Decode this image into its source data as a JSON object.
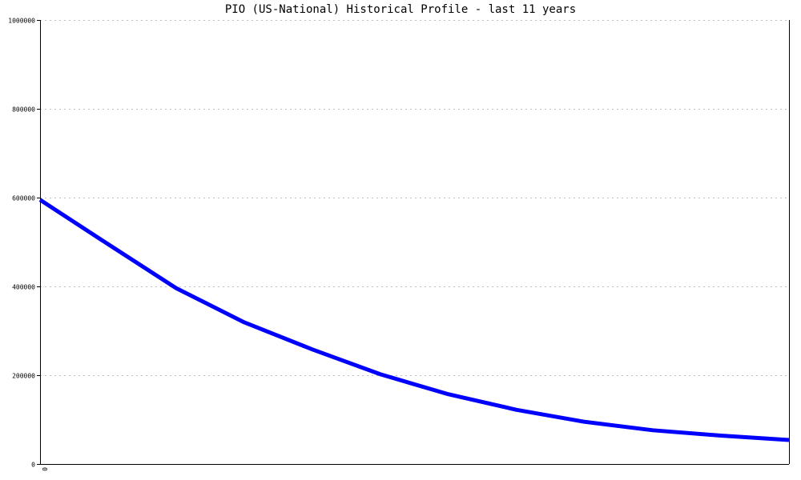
{
  "chart_data": {
    "type": "line",
    "title": "PIO (US-National) Historical Profile - last 11 years",
    "xlabel": "",
    "ylabel": "",
    "x_tick_labels": [
      "0"
    ],
    "y_ticks": [
      0,
      200000,
      400000,
      600000,
      800000,
      1000000
    ],
    "y_tick_labels": [
      "0",
      "200000",
      "400000",
      "600000",
      "800000",
      "1000000"
    ],
    "ylim": [
      0,
      1000000
    ],
    "grid": true,
    "series": [
      {
        "color": "#0000ff",
        "values": [
          595000,
          495000,
          396000,
          319000,
          258000,
          202000,
          157000,
          122000,
          95000,
          76000,
          64000,
          54000
        ]
      }
    ]
  }
}
